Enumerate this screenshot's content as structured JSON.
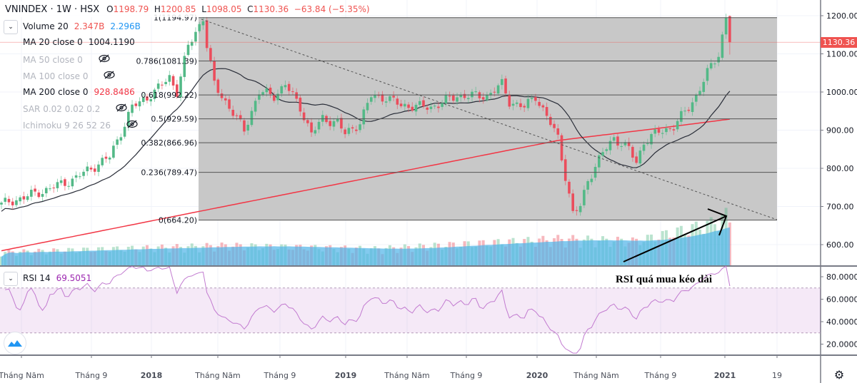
{
  "header": {
    "symbol": "VNINDEX · 1W · HSX",
    "open_label": "O",
    "open": "1198.79",
    "high_label": "H",
    "high": "1200.85",
    "low_label": "L",
    "low": "1098.05",
    "close_label": "C",
    "close": "1130.36",
    "change": "−63.84 (−5.35%)"
  },
  "indicators": [
    {
      "name": "Volume 20",
      "values": [
        "2.347B",
        "2.296B"
      ],
      "value_colors": [
        "#ef5350",
        "#2196f3"
      ],
      "hidden": false
    },
    {
      "name": "MA 20 close 0",
      "values": [
        "1004.1190"
      ],
      "value_colors": [
        "#131722"
      ],
      "hidden": false
    },
    {
      "name": "MA 50 close 0",
      "values": [],
      "hidden": true
    },
    {
      "name": "MA 100 close 0",
      "values": [],
      "hidden": true
    },
    {
      "name": "MA 200 close 0",
      "values": [
        "928.8486"
      ],
      "value_colors": [
        "#f23645"
      ],
      "hidden": false
    },
    {
      "name": "SAR 0.02 0.02 0.2",
      "values": [],
      "hidden": true
    },
    {
      "name": "Ichimoku 9 26 52 26",
      "values": [],
      "hidden": true
    }
  ],
  "rsi_legend": {
    "name": "RSI 14",
    "value": "69.5051"
  },
  "current_price_tag": "1130.36",
  "annotation": "RSI quá mua kéo dài",
  "icons": {
    "collapse": "chevron-down-icon",
    "hidden": "eye-off-icon",
    "settings": "gear-icon",
    "logo": "tradingview-logo-icon"
  },
  "colors": {
    "up": "#53b987",
    "down": "#eb4d5c",
    "ma20": "#2a2e39",
    "ma200": "#f23645",
    "rsi": "#c27bd0",
    "volume_ma": "#4fb3e8",
    "fib_box": "#c8c8c8"
  },
  "chart_data": {
    "type": "candlestick",
    "title": "VNINDEX · 1W · HSX",
    "interval": "weekly",
    "price_axis": {
      "ticks": [
        1200,
        1100,
        1000,
        900,
        800,
        700,
        600
      ],
      "tick_labels": [
        "1200.00",
        "1100.00",
        "1000.00",
        "900.00",
        "800.00",
        "700.00",
        "600.00"
      ]
    },
    "rsi_axis": {
      "ticks": [
        80,
        60,
        40,
        20
      ],
      "tick_labels": [
        "80.0000",
        "60.0000",
        "40.0000",
        "20.0000"
      ],
      "band": [
        30,
        70
      ]
    },
    "time_axis": {
      "labels": [
        "Tháng Năm",
        "Tháng 9",
        "2018",
        "Tháng Năm",
        "Tháng 9",
        "2019",
        "Tháng Năm",
        "Tháng 9",
        "2020",
        "Tháng Năm",
        "Tháng 9",
        "2021",
        "19"
      ]
    },
    "price_keypoints": [
      [
        0,
        705
      ],
      [
        11,
        740
      ],
      [
        19,
        770
      ],
      [
        29,
        830
      ],
      [
        35,
        960
      ],
      [
        41,
        1000
      ],
      [
        45,
        1040
      ],
      [
        47,
        1000
      ],
      [
        50,
        1120
      ],
      [
        54,
        1195
      ],
      [
        55,
        1120
      ],
      [
        57,
        1020
      ],
      [
        61,
        960
      ],
      [
        65,
        900
      ],
      [
        69,
        1000
      ],
      [
        73,
        990
      ],
      [
        76,
        1020
      ],
      [
        80,
        960
      ],
      [
        83,
        890
      ],
      [
        86,
        930
      ],
      [
        90,
        920
      ],
      [
        92,
        890
      ],
      [
        96,
        920
      ],
      [
        99,
        990
      ],
      [
        103,
        985
      ],
      [
        107,
        965
      ],
      [
        115,
        960
      ],
      [
        122,
        990
      ],
      [
        130,
        990
      ],
      [
        134,
        1020
      ],
      [
        136,
        975
      ],
      [
        140,
        960
      ],
      [
        143,
        990
      ],
      [
        146,
        935
      ],
      [
        149,
        880
      ],
      [
        151,
        780
      ],
      [
        153,
        680
      ],
      [
        155,
        700
      ],
      [
        157,
        770
      ],
      [
        161,
        840
      ],
      [
        164,
        880
      ],
      [
        168,
        850
      ],
      [
        170,
        815
      ],
      [
        172,
        870
      ],
      [
        176,
        895
      ],
      [
        180,
        910
      ],
      [
        184,
        960
      ],
      [
        186,
        990
      ],
      [
        189,
        1050
      ],
      [
        192,
        1100
      ],
      [
        194,
        1195
      ],
      [
        195,
        1130.36
      ]
    ],
    "ma200_keypoints": [
      [
        0,
        584
      ],
      [
        57,
        695
      ],
      [
        149,
        873
      ],
      [
        176,
        905
      ],
      [
        195,
        929
      ]
    ],
    "volume_keypoints_billion": [
      [
        0,
        0.6
      ],
      [
        40,
        0.8
      ],
      [
        60,
        0.9
      ],
      [
        100,
        0.75
      ],
      [
        150,
        1.2
      ],
      [
        170,
        1.1
      ],
      [
        190,
        1.9
      ],
      [
        195,
        2.35
      ]
    ],
    "fibonacci": [
      {
        "level": "1",
        "value": 1194.97
      },
      {
        "level": "0.786",
        "value": 1081.39
      },
      {
        "level": "0.618",
        "value": 992.22
      },
      {
        "level": "0.5",
        "value": 929.59
      },
      {
        "level": "0.382",
        "value": 866.96
      },
      {
        "level": "0.236",
        "value": 789.47
      },
      {
        "level": "0",
        "value": 664.2
      }
    ]
  }
}
